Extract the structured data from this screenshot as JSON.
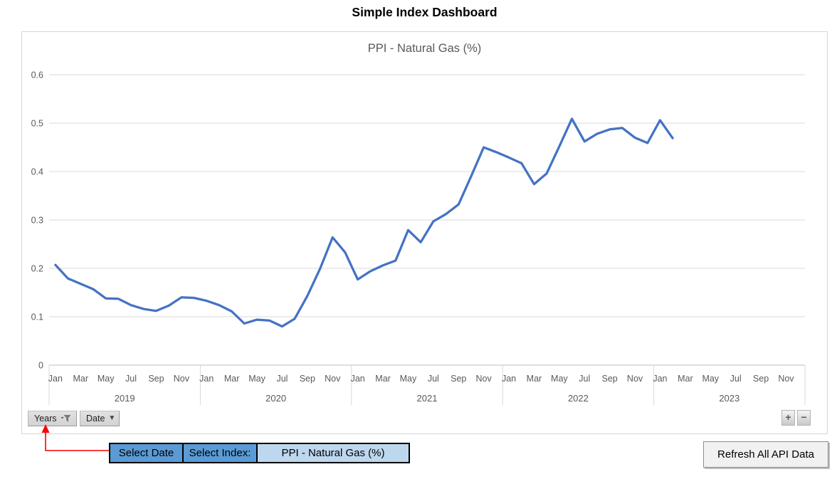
{
  "page_title": "Simple Index Dashboard",
  "chart_data": {
    "type": "line",
    "title": "PPI - Natural Gas (%)",
    "ylim": [
      0,
      0.6
    ],
    "y_tick_labels": [
      "0",
      "0.1",
      "0.2",
      "0.3",
      "0.4",
      "0.5",
      "0.6"
    ],
    "grid": true,
    "legend": "none",
    "years": [
      "2019",
      "2020",
      "2021",
      "2022",
      "2023"
    ],
    "month_tick_labels": [
      "Jan",
      "Mar",
      "May",
      "Jul",
      "Sep",
      "Nov"
    ],
    "axis_slots": 60,
    "x_axis_extends_to": "Dec 2023",
    "series": [
      {
        "name": "PPI - Natural Gas (%)",
        "start_month": "Jan 2019",
        "values": [
          0.207,
          0.179,
          0.168,
          0.157,
          0.138,
          0.137,
          0.124,
          0.116,
          0.112,
          0.123,
          0.14,
          0.139,
          0.133,
          0.124,
          0.111,
          0.086,
          0.094,
          0.092,
          0.08,
          0.096,
          0.143,
          0.199,
          0.264,
          0.233,
          0.177,
          0.194,
          0.206,
          0.216,
          0.279,
          0.254,
          0.297,
          0.312,
          0.332,
          0.39,
          0.45,
          0.44,
          0.429,
          0.417,
          0.374,
          0.396,
          0.452,
          0.509,
          0.462,
          0.478,
          0.487,
          0.49,
          0.47,
          0.459,
          0.506,
          0.469
        ]
      }
    ]
  },
  "pivot_buttons": {
    "years_label": "Years",
    "date_label": "Date"
  },
  "expand_buttons": {
    "plus_label": "+",
    "minus_label": "−"
  },
  "selectors": {
    "select_date_label": "Select Date",
    "select_index_label": "Select Index:",
    "selected_index_value": "PPI - Natural Gas (%)"
  },
  "refresh_button_label": "Refresh All API Data",
  "colors": {
    "line": "#4472C4",
    "gridline": "#D9D9D9",
    "axis_line": "#BFBFBF",
    "axis_text": "#595959",
    "select_cell_fill": "#5B9BD5",
    "index_value_cell_fill": "#BDD7EE",
    "annotation_red": "#FF0000"
  }
}
